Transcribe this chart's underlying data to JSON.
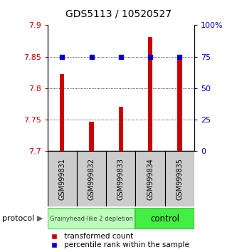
{
  "title": "GDS5113 / 10520527",
  "samples": [
    "GSM999831",
    "GSM999832",
    "GSM999833",
    "GSM999834",
    "GSM999835"
  ],
  "transformed_counts": [
    7.822,
    7.747,
    7.771,
    7.881,
    7.847
  ],
  "percentile_ranks": [
    75,
    75,
    75,
    75,
    75
  ],
  "ylim_left": [
    7.7,
    7.9
  ],
  "ylim_right": [
    0,
    100
  ],
  "yticks_left": [
    7.7,
    7.75,
    7.8,
    7.85,
    7.9
  ],
  "yticks_right": [
    0,
    25,
    50,
    75,
    100
  ],
  "ytick_labels_left": [
    "7.7",
    "7.75",
    "7.8",
    "7.85",
    "7.9"
  ],
  "ytick_labels_right": [
    "0",
    "25",
    "50",
    "75",
    "100%"
  ],
  "bar_color": "#cc0000",
  "dot_color": "#0000cc",
  "bar_bottom": 7.7,
  "bar_width": 0.15,
  "groups": [
    {
      "label": "Grainyhead-like 2 depletion",
      "samples": [
        0,
        1,
        2
      ],
      "color": "#bbffbb",
      "border": "#33cc33"
    },
    {
      "label": "control",
      "samples": [
        3,
        4
      ],
      "color": "#44ee44",
      "border": "#33cc33"
    }
  ],
  "protocol_label": "protocol",
  "grid_color": "#000000",
  "legend_red_label": "transformed count",
  "legend_blue_label": "percentile rank within the sample",
  "background_plot": "#ffffff",
  "background_label": "#cccccc",
  "title_fontsize": 10,
  "tick_fontsize": 8,
  "label_fontsize": 7,
  "legend_fontsize": 7.5
}
